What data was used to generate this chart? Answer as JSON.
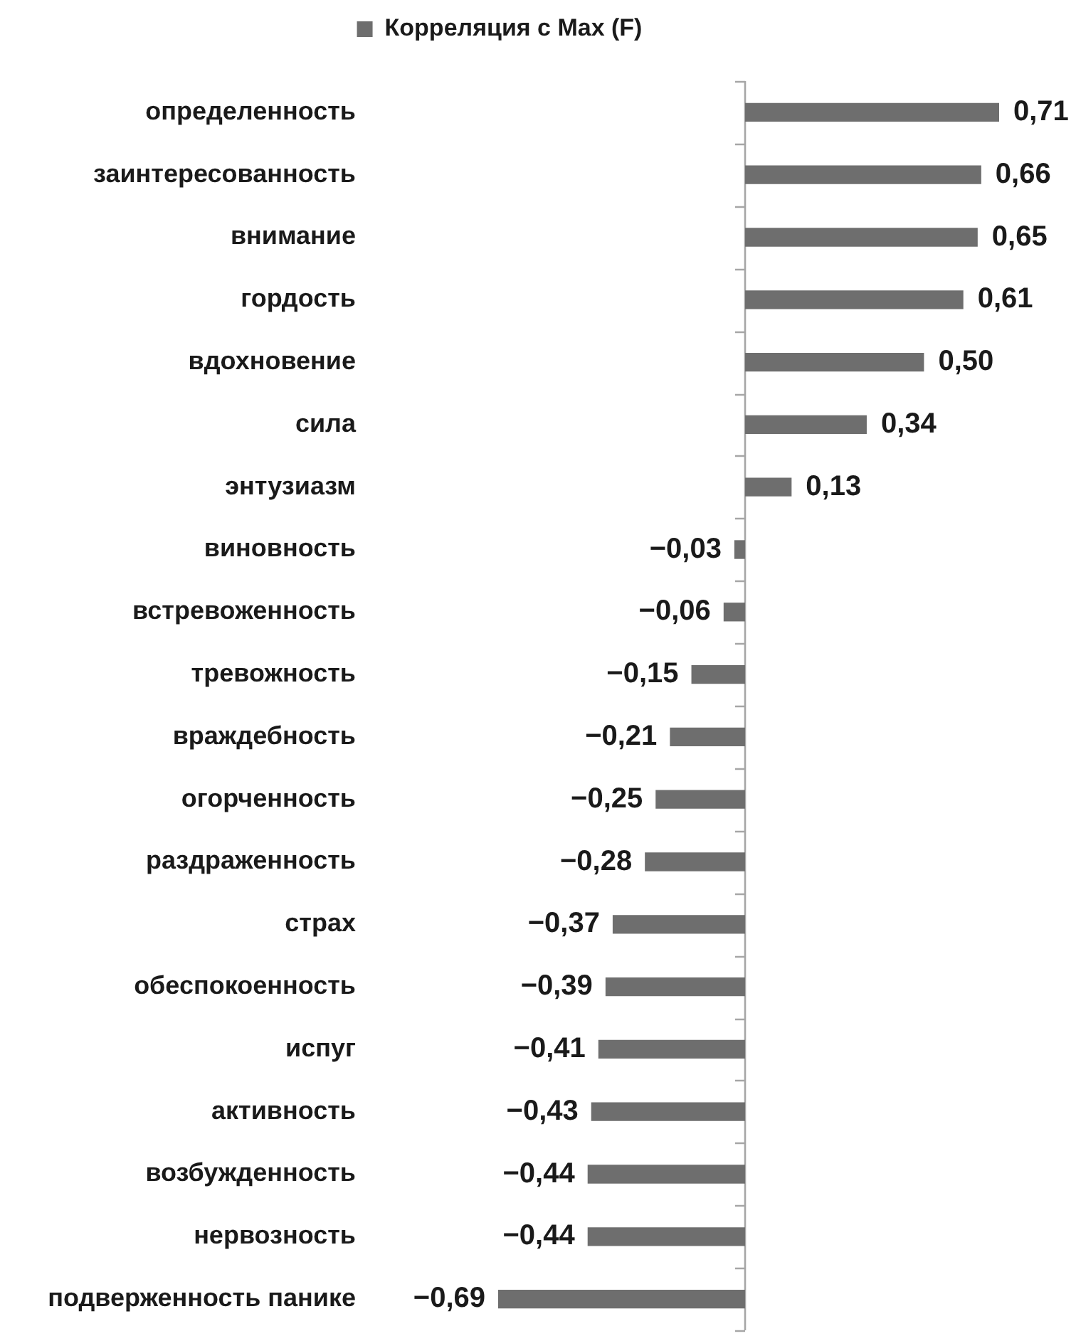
{
  "chart_data": {
    "type": "bar",
    "orientation": "horizontal",
    "legend": "top",
    "categories": [
      "определенность",
      "заинтересованность",
      "внимание",
      "гордость",
      "вдохновение",
      "сила",
      "энтузиазм",
      "виновность",
      "встревоженность",
      "тревожность",
      "враждебность",
      "огорченность",
      "раздраженность",
      "страх",
      "обеспокоенность",
      "испуг",
      "активность",
      "возбужденность",
      "нервозность",
      "подверженность панике"
    ],
    "series": [
      {
        "name": "Корреляция с Max (F)",
        "color": "#6e6e6e",
        "values": [
          0.71,
          0.66,
          0.65,
          0.61,
          0.5,
          0.34,
          0.13,
          -0.03,
          -0.06,
          -0.15,
          -0.21,
          -0.25,
          -0.28,
          -0.37,
          -0.39,
          -0.41,
          -0.43,
          -0.44,
          -0.44,
          -0.69
        ],
        "value_labels": [
          "0,71",
          "0,66",
          "0,65",
          "0,61",
          "0,50",
          "0,34",
          "0,13",
          "−0,03",
          "−0,06",
          "−0,15",
          "−0,21",
          "−0,25",
          "−0,28",
          "−0,37",
          "−0,39",
          "−0,41",
          "−0,43",
          "−0,44",
          "−0,44",
          "−0,69"
        ]
      }
    ]
  }
}
